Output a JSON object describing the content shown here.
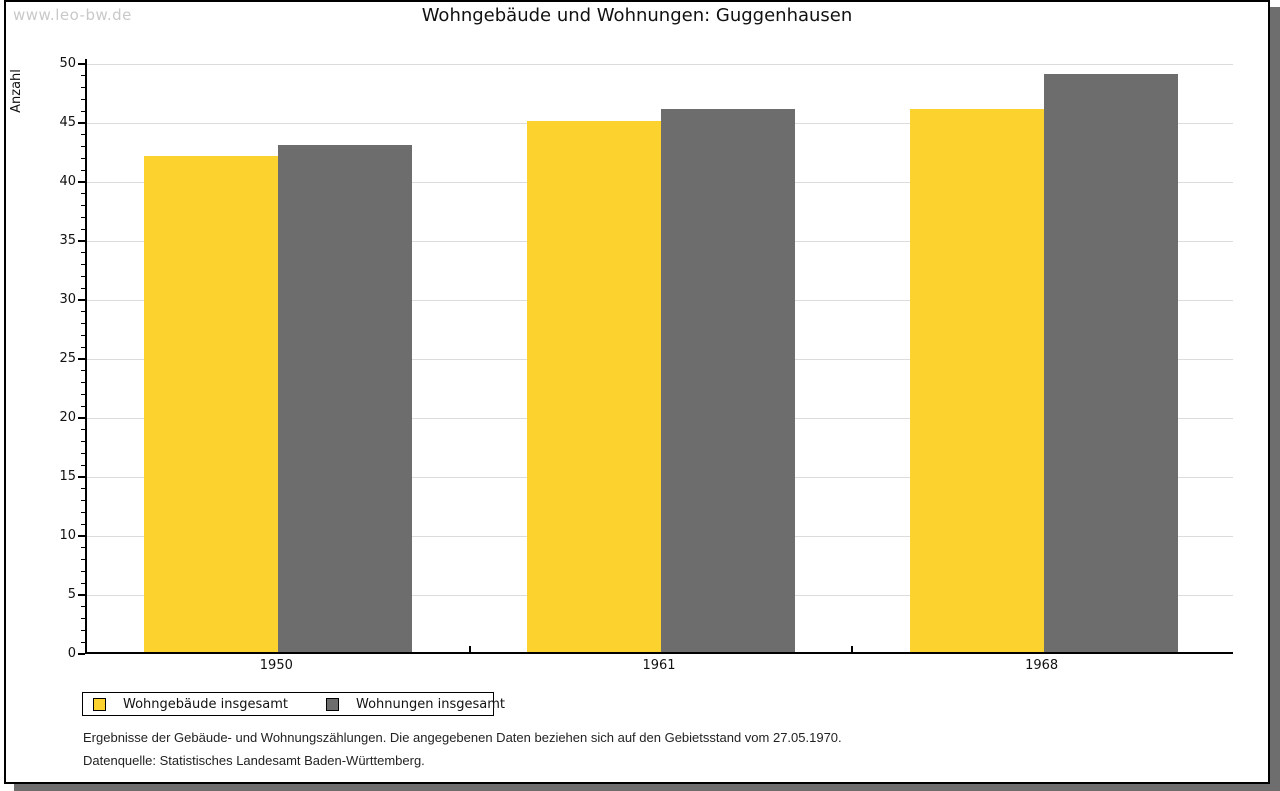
{
  "watermark": "www.leo-bw.de",
  "title": "Wohngebäude und Wohnungen: Guggenhausen",
  "chart_data": {
    "type": "bar",
    "title": "Wohngebäude und Wohnungen: Guggenhausen",
    "xlabel": "",
    "ylabel": "Anzahl",
    "categories": [
      "1950",
      "1961",
      "1968"
    ],
    "series": [
      {
        "name": "Wohngebäude insgesamt",
        "color": "#fcd32e",
        "values": [
          42,
          45,
          46
        ]
      },
      {
        "name": "Wohnungen insgesamt",
        "color": "#6d6d6d",
        "values": [
          43,
          46,
          49
        ]
      }
    ],
    "ylim": [
      0,
      50
    ],
    "ytick_step": 5,
    "minor_tick_step": 1,
    "grid": "horizontal-major",
    "gridline_color": "#dcdcdc",
    "legend_position": "bottom-left"
  },
  "legend": {
    "items": [
      {
        "label": "Wohngebäude insgesamt",
        "color": "#fcd32e"
      },
      {
        "label": "Wohnungen insgesamt",
        "color": "#6d6d6d"
      }
    ]
  },
  "footer": {
    "line1": "Ergebnisse der Gebäude- und Wohnungszählungen. Die angegebenen Daten beziehen sich auf den Gebietsstand vom 27.05.1970.",
    "line2": "Datenquelle: Statistisches Landesamt Baden-Württemberg."
  }
}
